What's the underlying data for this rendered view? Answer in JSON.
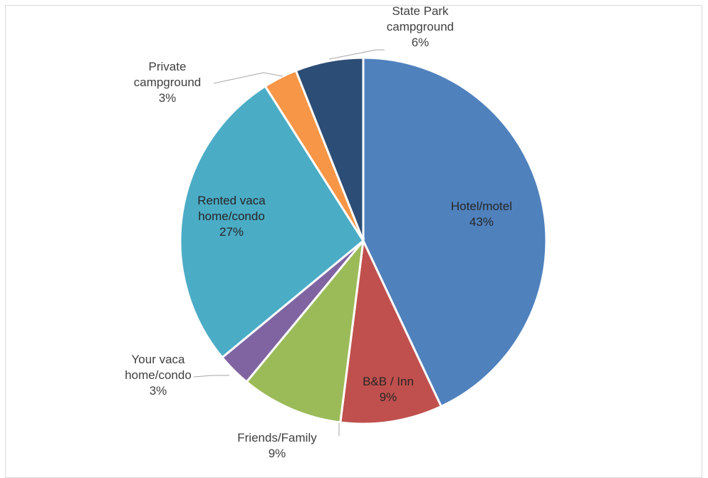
{
  "chart_data": {
    "type": "pie",
    "title": "",
    "slices": [
      {
        "label_lines": [
          "Hotel/motel"
        ],
        "pct_label": "43%",
        "value": 43,
        "color": "#4f81bd"
      },
      {
        "label_lines": [
          "B&B / Inn"
        ],
        "pct_label": "9%",
        "value": 9,
        "color": "#c0504d"
      },
      {
        "label_lines": [
          "Friends/Family"
        ],
        "pct_label": "9%",
        "value": 9,
        "color": "#9bbb59"
      },
      {
        "label_lines": [
          "Your vaca",
          "home/condo"
        ],
        "pct_label": "3%",
        "value": 3,
        "color": "#8064a2"
      },
      {
        "label_lines": [
          "Rented vaca",
          "home/condo"
        ],
        "pct_label": "27%",
        "value": 27,
        "color": "#4bacc6"
      },
      {
        "label_lines": [
          "Private",
          "campground"
        ],
        "pct_label": "3%",
        "value": 3,
        "color": "#f79646"
      },
      {
        "label_lines": [
          "State Park",
          "campground"
        ],
        "pct_label": "6%",
        "value": 6,
        "color": "#2c4d75"
      }
    ],
    "legend": "none",
    "start_angle": "12 o'clock",
    "direction": "clockwise"
  }
}
